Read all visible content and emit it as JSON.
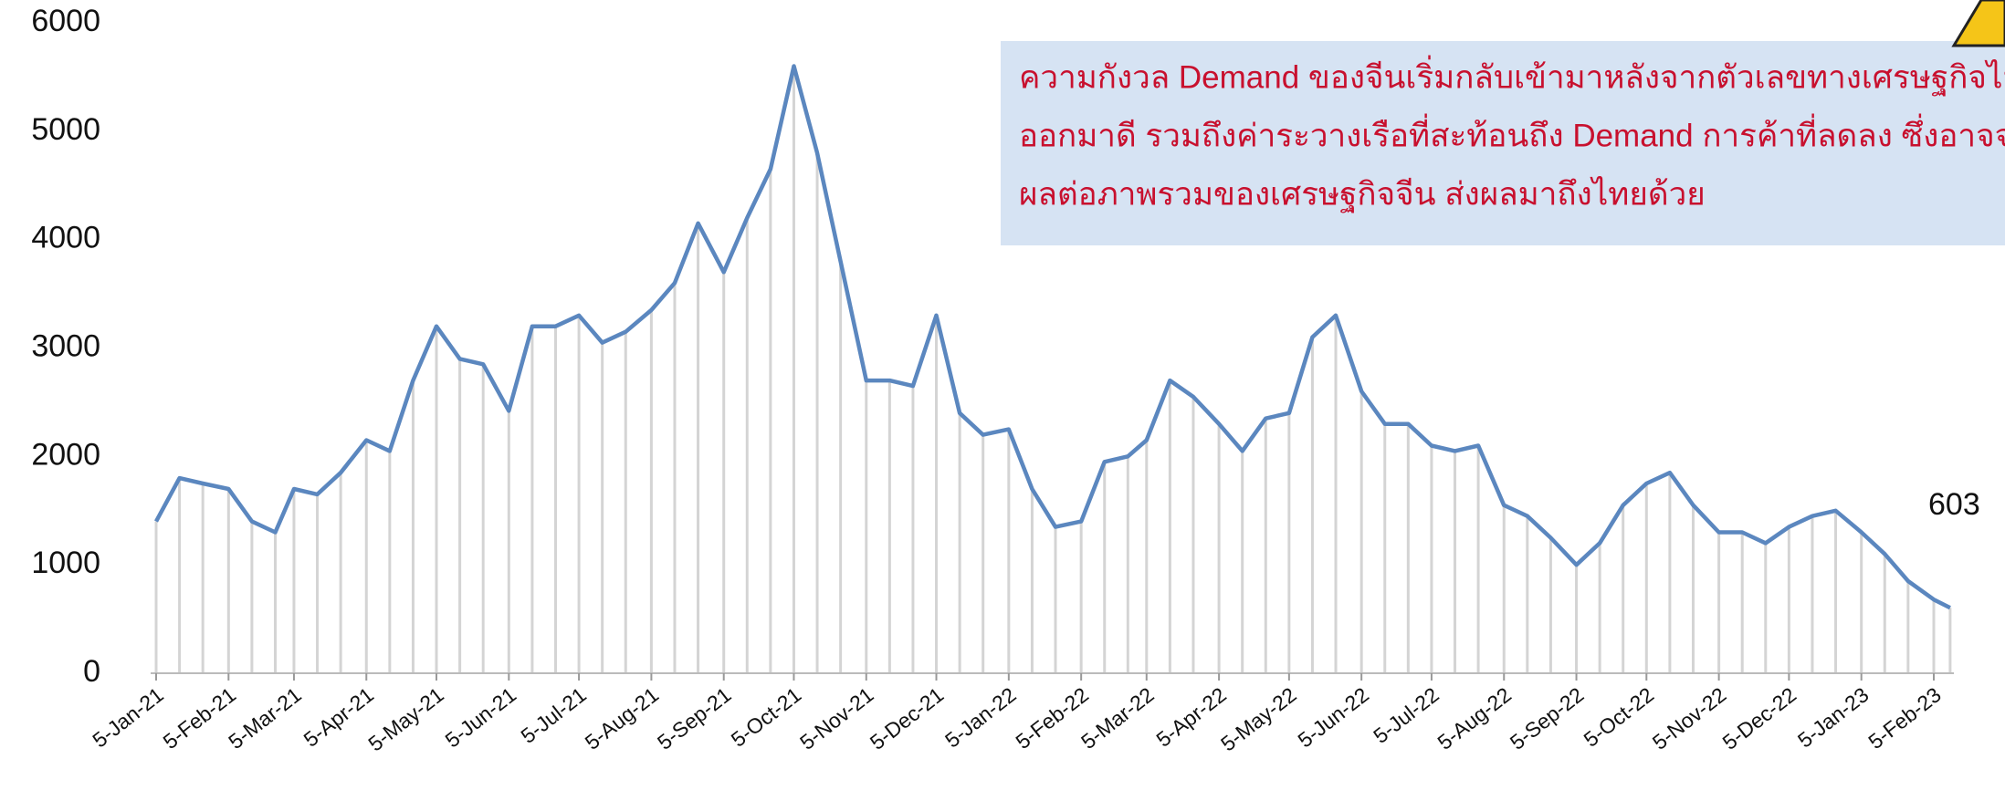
{
  "chart_data": {
    "type": "line",
    "x": [
      "2021-01-05",
      "2021-01-15",
      "2021-01-25",
      "2021-02-05",
      "2021-02-15",
      "2021-02-25",
      "2021-03-05",
      "2021-03-15",
      "2021-03-25",
      "2021-04-05",
      "2021-04-15",
      "2021-04-25",
      "2021-05-05",
      "2021-05-15",
      "2021-05-25",
      "2021-06-05",
      "2021-06-15",
      "2021-06-25",
      "2021-07-05",
      "2021-07-15",
      "2021-07-25",
      "2021-08-05",
      "2021-08-15",
      "2021-08-25",
      "2021-09-05",
      "2021-09-15",
      "2021-09-25",
      "2021-10-05",
      "2021-10-15",
      "2021-10-25",
      "2021-11-05",
      "2021-11-15",
      "2021-11-25",
      "2021-12-05",
      "2021-12-15",
      "2021-12-25",
      "2022-01-05",
      "2022-01-15",
      "2022-01-25",
      "2022-02-05",
      "2022-02-15",
      "2022-02-25",
      "2022-03-05",
      "2022-03-15",
      "2022-03-25",
      "2022-04-05",
      "2022-04-15",
      "2022-04-25",
      "2022-05-05",
      "2022-05-15",
      "2022-05-25",
      "2022-06-05",
      "2022-06-15",
      "2022-06-25",
      "2022-07-05",
      "2022-07-15",
      "2022-07-25",
      "2022-08-05",
      "2022-08-15",
      "2022-08-25",
      "2022-09-05",
      "2022-09-15",
      "2022-09-25",
      "2022-10-05",
      "2022-10-15",
      "2022-10-25",
      "2022-11-05",
      "2022-11-15",
      "2022-11-25",
      "2022-12-05",
      "2022-12-15",
      "2022-12-25",
      "2023-01-05",
      "2023-01-15",
      "2023-01-25",
      "2023-02-05",
      "2023-02-12"
    ],
    "series": [
      {
        "color": "#5b87bf",
        "values": [
          1400,
          1800,
          1750,
          1700,
          1400,
          1300,
          1700,
          1650,
          1850,
          2150,
          2050,
          2700,
          3200,
          2900,
          2850,
          2420,
          3200,
          3200,
          3300,
          3050,
          3150,
          3350,
          3600,
          4150,
          3700,
          4200,
          4650,
          5600,
          4800,
          3800,
          2700,
          2700,
          2650,
          3300,
          2400,
          2200,
          2250,
          1700,
          1350,
          1400,
          1950,
          2000,
          2150,
          2700,
          2550,
          2300,
          2050,
          2350,
          2400,
          3100,
          3300,
          2600,
          2300,
          2300,
          2100,
          2050,
          2100,
          1550,
          1450,
          1250,
          1000,
          1200,
          1550,
          1750,
          1850,
          1550,
          1300,
          1300,
          1200,
          1350,
          1450,
          1500,
          1300,
          1100,
          850,
          680,
          603
        ]
      }
    ],
    "ylim": [
      0,
      6000
    ],
    "yticks": [
      0,
      1000,
      2000,
      3000,
      4000,
      5000,
      6000
    ],
    "xticks": [
      {
        "value": "2021-01-05",
        "label": "5-Jan-21"
      },
      {
        "value": "2021-02-05",
        "label": "5-Feb-21"
      },
      {
        "value": "2021-03-05",
        "label": "5-Mar-21"
      },
      {
        "value": "2021-04-05",
        "label": "5-Apr-21"
      },
      {
        "value": "2021-05-05",
        "label": "5-May-21"
      },
      {
        "value": "2021-06-05",
        "label": "5-Jun-21"
      },
      {
        "value": "2021-07-05",
        "label": "5-Jul-21"
      },
      {
        "value": "2021-08-05",
        "label": "5-Aug-21"
      },
      {
        "value": "2021-09-05",
        "label": "5-Sep-21"
      },
      {
        "value": "2021-10-05",
        "label": "5-Oct-21"
      },
      {
        "value": "2021-11-05",
        "label": "5-Nov-21"
      },
      {
        "value": "2021-12-05",
        "label": "5-Dec-21"
      },
      {
        "value": "2022-01-05",
        "label": "5-Jan-22"
      },
      {
        "value": "2022-02-05",
        "label": "5-Feb-22"
      },
      {
        "value": "2022-03-05",
        "label": "5-Mar-22"
      },
      {
        "value": "2022-04-05",
        "label": "5-Apr-22"
      },
      {
        "value": "2022-05-05",
        "label": "5-May-22"
      },
      {
        "value": "2022-06-05",
        "label": "5-Jun-22"
      },
      {
        "value": "2022-07-05",
        "label": "5-Jul-22"
      },
      {
        "value": "2022-08-05",
        "label": "5-Aug-22"
      },
      {
        "value": "2022-09-05",
        "label": "5-Sep-22"
      },
      {
        "value": "2022-10-05",
        "label": "5-Oct-22"
      },
      {
        "value": "2022-11-05",
        "label": "5-Nov-22"
      },
      {
        "value": "2022-12-05",
        "label": "5-Dec-22"
      },
      {
        "value": "2023-01-05",
        "label": "5-Jan-23"
      },
      {
        "value": "2023-02-05",
        "label": "5-Feb-23"
      }
    ],
    "annotation": [
      "ความกังวล Demand ของจีนเริ่มกลับเข้ามาหลังจากตัวเลขทางเศรษฐกิจไม่",
      "ออกมาดี รวมถึงค่าระวางเรือที่สะท้อนถึง Demand การค้าที่ลดลง ซึ่งอาจจ",
      "ผลต่อภาพรวมของเศรษฐกิจจีน ส่งผลมาถึงไทยด้วย"
    ]
  }
}
